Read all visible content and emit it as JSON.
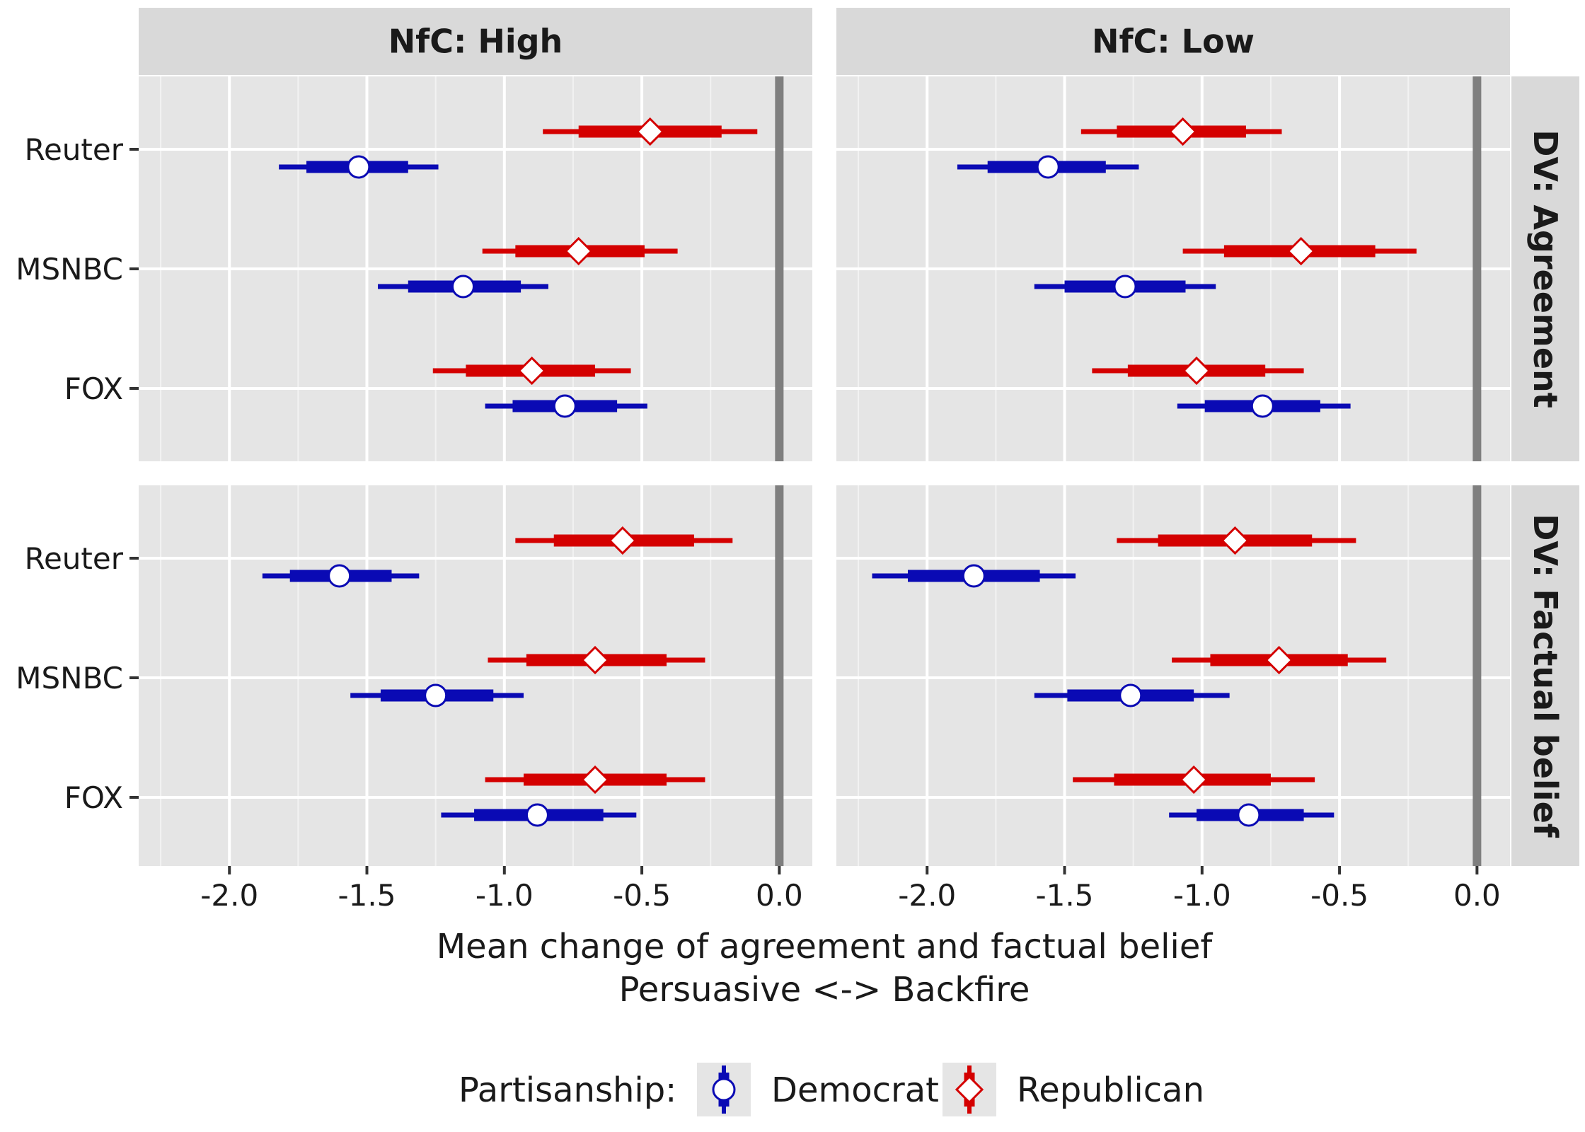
{
  "chart_data": {
    "type": "pointrange-facet",
    "facet_columns": [
      "NfC: High",
      "NfC: Low"
    ],
    "facet_rows": [
      "DV: Agreement",
      "DV: Factual belief"
    ],
    "categories": [
      "Reuter",
      "MSNBC",
      "FOX"
    ],
    "x_ticks": [
      -2.0,
      -1.5,
      -1.0,
      -0.5,
      0.0
    ],
    "x_tick_labels": [
      "-2.0",
      "-1.5",
      "-1.0",
      "-0.5",
      "0.0"
    ],
    "xlim": [
      -2.33,
      0.12
    ],
    "xlabel": "Mean change of agreement and factual belief",
    "xlabel2": "Persuasive <-> Backfire",
    "reference_line_x": 0.0,
    "legend": {
      "title": "Partisanship:",
      "position": "bottom",
      "items": [
        {
          "name": "Democrat",
          "color": "#0a0ab4",
          "shape": "circle"
        },
        {
          "name": "Republican",
          "color": "#d40000",
          "shape": "diamond"
        }
      ]
    },
    "panels": [
      {
        "col": "NfC: High",
        "row": "DV: Agreement",
        "rows": [
          {
            "category": "Reuter",
            "Republican": {
              "mean": -0.47,
              "inner": [
                -0.73,
                -0.21
              ],
              "outer": [
                -0.86,
                -0.08
              ]
            },
            "Democrat": {
              "mean": -1.53,
              "inner": [
                -1.72,
                -1.35
              ],
              "outer": [
                -1.82,
                -1.24
              ]
            }
          },
          {
            "category": "MSNBC",
            "Republican": {
              "mean": -0.73,
              "inner": [
                -0.96,
                -0.49
              ],
              "outer": [
                -1.08,
                -0.37
              ]
            },
            "Democrat": {
              "mean": -1.15,
              "inner": [
                -1.35,
                -0.94
              ],
              "outer": [
                -1.46,
                -0.84
              ]
            }
          },
          {
            "category": "FOX",
            "Republican": {
              "mean": -0.9,
              "inner": [
                -1.14,
                -0.67
              ],
              "outer": [
                -1.26,
                -0.54
              ]
            },
            "Democrat": {
              "mean": -0.78,
              "inner": [
                -0.97,
                -0.59
              ],
              "outer": [
                -1.07,
                -0.48
              ]
            }
          }
        ]
      },
      {
        "col": "NfC: Low",
        "row": "DV: Agreement",
        "rows": [
          {
            "category": "Reuter",
            "Republican": {
              "mean": -1.07,
              "inner": [
                -1.31,
                -0.84
              ],
              "outer": [
                -1.44,
                -0.71
              ]
            },
            "Democrat": {
              "mean": -1.56,
              "inner": [
                -1.78,
                -1.35
              ],
              "outer": [
                -1.89,
                -1.23
              ]
            }
          },
          {
            "category": "MSNBC",
            "Republican": {
              "mean": -0.64,
              "inner": [
                -0.92,
                -0.37
              ],
              "outer": [
                -1.07,
                -0.22
              ]
            },
            "Democrat": {
              "mean": -1.28,
              "inner": [
                -1.5,
                -1.06
              ],
              "outer": [
                -1.61,
                -0.95
              ]
            }
          },
          {
            "category": "FOX",
            "Republican": {
              "mean": -1.02,
              "inner": [
                -1.27,
                -0.77
              ],
              "outer": [
                -1.4,
                -0.63
              ]
            },
            "Democrat": {
              "mean": -0.78,
              "inner": [
                -0.99,
                -0.57
              ],
              "outer": [
                -1.09,
                -0.46
              ]
            }
          }
        ]
      },
      {
        "col": "NfC: High",
        "row": "DV: Factual belief",
        "rows": [
          {
            "category": "Reuter",
            "Republican": {
              "mean": -0.57,
              "inner": [
                -0.82,
                -0.31
              ],
              "outer": [
                -0.96,
                -0.17
              ]
            },
            "Democrat": {
              "mean": -1.6,
              "inner": [
                -1.78,
                -1.41
              ],
              "outer": [
                -1.88,
                -1.31
              ]
            }
          },
          {
            "category": "MSNBC",
            "Republican": {
              "mean": -0.67,
              "inner": [
                -0.92,
                -0.41
              ],
              "outer": [
                -1.06,
                -0.27
              ]
            },
            "Democrat": {
              "mean": -1.25,
              "inner": [
                -1.45,
                -1.04
              ],
              "outer": [
                -1.56,
                -0.93
              ]
            }
          },
          {
            "category": "FOX",
            "Republican": {
              "mean": -0.67,
              "inner": [
                -0.93,
                -0.41
              ],
              "outer": [
                -1.07,
                -0.27
              ]
            },
            "Democrat": {
              "mean": -0.88,
              "inner": [
                -1.11,
                -0.64
              ],
              "outer": [
                -1.23,
                -0.52
              ]
            }
          }
        ]
      },
      {
        "col": "NfC: Low",
        "row": "DV: Factual belief",
        "rows": [
          {
            "category": "Reuter",
            "Republican": {
              "mean": -0.88,
              "inner": [
                -1.16,
                -0.6
              ],
              "outer": [
                -1.31,
                -0.44
              ]
            },
            "Democrat": {
              "mean": -1.83,
              "inner": [
                -2.07,
                -1.59
              ],
              "outer": [
                -2.2,
                -1.46
              ]
            }
          },
          {
            "category": "MSNBC",
            "Republican": {
              "mean": -0.72,
              "inner": [
                -0.97,
                -0.47
              ],
              "outer": [
                -1.11,
                -0.33
              ]
            },
            "Democrat": {
              "mean": -1.26,
              "inner": [
                -1.49,
                -1.03
              ],
              "outer": [
                -1.61,
                -0.9
              ]
            }
          },
          {
            "category": "FOX",
            "Republican": {
              "mean": -1.03,
              "inner": [
                -1.32,
                -0.75
              ],
              "outer": [
                -1.47,
                -0.59
              ]
            },
            "Democrat": {
              "mean": -0.83,
              "inner": [
                -1.02,
                -0.63
              ],
              "outer": [
                -1.12,
                -0.52
              ]
            }
          }
        ]
      }
    ]
  }
}
